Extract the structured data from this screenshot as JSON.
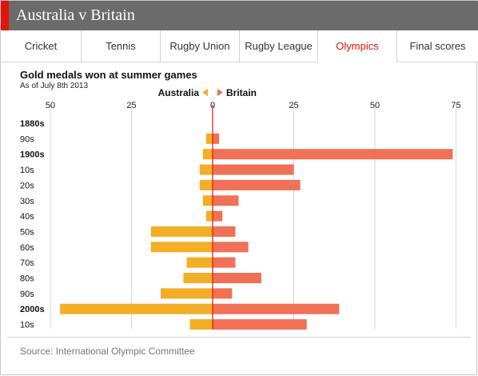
{
  "header": {
    "title": "Australia v Britain"
  },
  "tabs": [
    {
      "label": "Cricket",
      "active": false
    },
    {
      "label": "Tennis",
      "active": false
    },
    {
      "label": "Rugby Union",
      "active": false
    },
    {
      "label": "Rugby League",
      "active": false
    },
    {
      "label": "Olympics",
      "active": true
    },
    {
      "label": "Final scores",
      "active": false
    }
  ],
  "colors": {
    "accent": "#e3120b",
    "australia": "#f2ae26",
    "britain": "#f07156",
    "header_bg": "#6b6b6b"
  },
  "footer": {
    "source": "Source: International Olympic Committee"
  },
  "chart_data": {
    "type": "bar",
    "orientation": "horizontal-diverging",
    "title": "Gold medals won at summer games",
    "subtitle": "As of July 8th 2013",
    "categories": [
      "1880s",
      "90s",
      "1900s",
      "10s",
      "20s",
      "30s",
      "40s",
      "50s",
      "60s",
      "70s",
      "80s",
      "90s",
      "2000s",
      "10s"
    ],
    "bold_categories": [
      "1880s",
      "1900s",
      "2000s"
    ],
    "series": [
      {
        "name": "Australia",
        "direction": "left",
        "values": [
          0,
          2,
          3,
          4,
          4,
          3,
          2,
          19,
          19,
          8,
          9,
          16,
          47,
          7
        ]
      },
      {
        "name": "Britain",
        "direction": "right",
        "values": [
          0,
          2,
          74,
          25,
          27,
          8,
          3,
          7,
          11,
          7,
          15,
          6,
          39,
          29
        ]
      }
    ],
    "xlim": [
      -50,
      75
    ],
    "ticks": [
      -50,
      -25,
      0,
      25,
      50,
      75
    ],
    "tick_labels": [
      "50",
      "25",
      "0",
      "25",
      "50",
      "75"
    ],
    "legend": {
      "position": "top-center",
      "left_label": "Australia",
      "right_label": "Britain"
    },
    "grid": true
  }
}
